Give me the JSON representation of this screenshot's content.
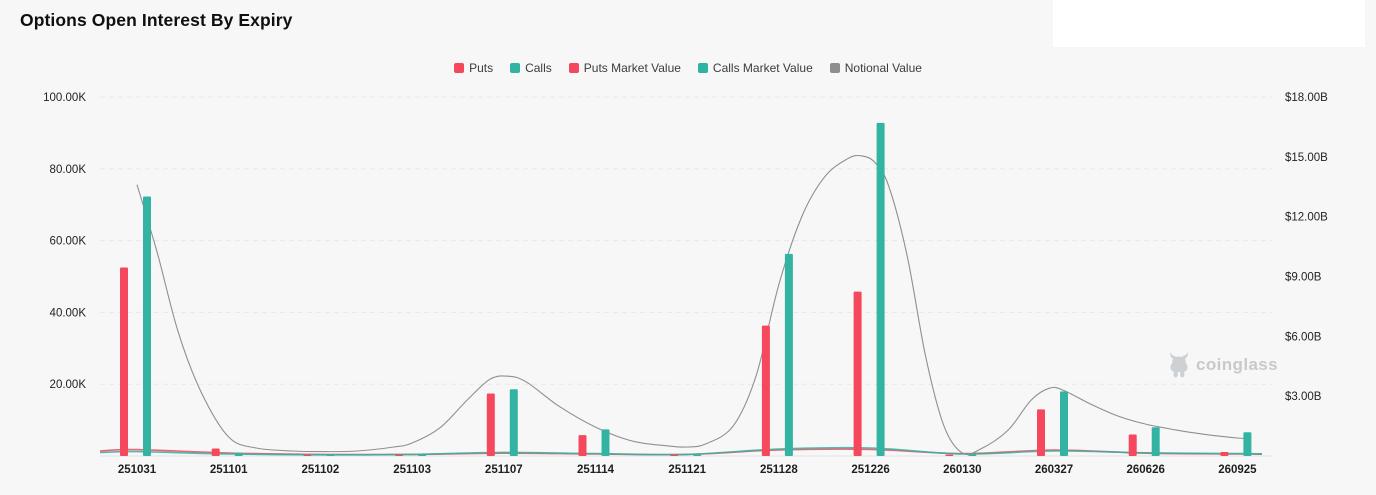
{
  "header": {
    "title": "Options Open Interest By Expiry"
  },
  "legend": {
    "items": [
      {
        "label": "Puts",
        "color": "#f5485d"
      },
      {
        "label": "Calls",
        "color": "#33b4a2"
      },
      {
        "label": "Puts Market Value",
        "color": "#f5485d"
      },
      {
        "label": "Calls Market Value",
        "color": "#2fb3a2"
      },
      {
        "label": "Notional Value",
        "color": "#8e8e8e"
      }
    ]
  },
  "watermark": {
    "label": "coinglass",
    "icon": "bull-logo",
    "color": "#c7c9cc"
  },
  "colors": {
    "background": "#f7f7f8",
    "puts": "#f5485d",
    "calls": "#33b4a2",
    "notional": "#8f8f8f",
    "grid": "#e8e8e8",
    "axis_text": "#232323"
  },
  "chart_data": {
    "type": "bar",
    "title": "Options Open Interest By Expiry",
    "categories": [
      "251031",
      "251101",
      "251102",
      "251103",
      "251107",
      "251114",
      "251121",
      "251128",
      "251226",
      "260130",
      "260327",
      "260626",
      "260925"
    ],
    "left_axis": {
      "unit": "K contracts",
      "tick_values": [
        20,
        40,
        60,
        80,
        100
      ],
      "tick_labels": [
        "20.00K",
        "40.00K",
        "60.00K",
        "80.00K",
        "100.00K"
      ],
      "ylim": [
        0,
        105
      ],
      "grid": "dashed"
    },
    "right_axis": {
      "unit": "$B",
      "tick_values": [
        3,
        6,
        9,
        12,
        15,
        18
      ],
      "tick_labels": [
        "$3.00B",
        "$6.00B",
        "$9.00B",
        "$12.00B",
        "$15.00B",
        "$18.00B"
      ],
      "ylim": [
        0,
        18.9
      ]
    },
    "legend_position": "top-center",
    "series": [
      {
        "name": "Puts",
        "render": "bar",
        "axis": "left",
        "color": "#f5485d",
        "values": [
          52.5,
          2.1,
          0.2,
          0.2,
          17.4,
          5.8,
          0.2,
          36.3,
          45.8,
          0.4,
          13.0,
          6.0,
          1.1
        ]
      },
      {
        "name": "Calls",
        "render": "bar",
        "axis": "left",
        "color": "#33b4a2",
        "values": [
          72.3,
          0.9,
          0.3,
          0.3,
          18.6,
          7.4,
          0.3,
          56.3,
          92.8,
          0.5,
          18.0,
          8.0,
          6.6
        ]
      },
      {
        "name": "Puts Market Value",
        "render": "line",
        "axis": "right",
        "color": "#f5485d",
        "values": [
          0.32,
          0.15,
          0.08,
          0.08,
          0.14,
          0.1,
          0.08,
          0.3,
          0.33,
          0.12,
          0.3,
          0.14,
          0.1
        ]
      },
      {
        "name": "Calls Market Value",
        "render": "line",
        "axis": "right",
        "color": "#2fb3a2",
        "values": [
          0.22,
          0.1,
          0.06,
          0.08,
          0.18,
          0.12,
          0.08,
          0.35,
          0.4,
          0.1,
          0.25,
          0.16,
          0.12
        ]
      },
      {
        "name": "Notional Value",
        "render": "line",
        "axis": "right",
        "color": "#8f8f8f",
        "points": [
          [
            0,
            13.6
          ],
          [
            0.22,
            10.2
          ],
          [
            0.45,
            6.2
          ],
          [
            0.7,
            3.2
          ],
          [
            1,
            0.95
          ],
          [
            1.3,
            0.4
          ],
          [
            1.7,
            0.25
          ],
          [
            2,
            0.22
          ],
          [
            2.4,
            0.25
          ],
          [
            2.8,
            0.45
          ],
          [
            3,
            0.65
          ],
          [
            3.3,
            1.4
          ],
          [
            3.6,
            2.8
          ],
          [
            3.85,
            3.85
          ],
          [
            4.05,
            4.0
          ],
          [
            4.25,
            3.7
          ],
          [
            4.6,
            2.5
          ],
          [
            5,
            1.45
          ],
          [
            5.4,
            0.75
          ],
          [
            5.8,
            0.5
          ],
          [
            6,
            0.45
          ],
          [
            6.2,
            0.6
          ],
          [
            6.5,
            1.5
          ],
          [
            6.75,
            4.0
          ],
          [
            7,
            8.6
          ],
          [
            7.25,
            12.0
          ],
          [
            7.5,
            14.0
          ],
          [
            7.75,
            14.9
          ],
          [
            7.9,
            15.05
          ],
          [
            8.05,
            14.7
          ],
          [
            8.2,
            13.5
          ],
          [
            8.4,
            10.0
          ],
          [
            8.6,
            5.0
          ],
          [
            8.8,
            1.5
          ],
          [
            9,
            0.15
          ],
          [
            9.2,
            0.35
          ],
          [
            9.5,
            1.3
          ],
          [
            9.75,
            2.8
          ],
          [
            9.95,
            3.4
          ],
          [
            10.1,
            3.3
          ],
          [
            10.4,
            2.6
          ],
          [
            10.7,
            2.0
          ],
          [
            11,
            1.6
          ],
          [
            11.4,
            1.25
          ],
          [
            11.7,
            1.05
          ],
          [
            12,
            0.9
          ],
          [
            12.15,
            0.87
          ]
        ]
      }
    ]
  }
}
